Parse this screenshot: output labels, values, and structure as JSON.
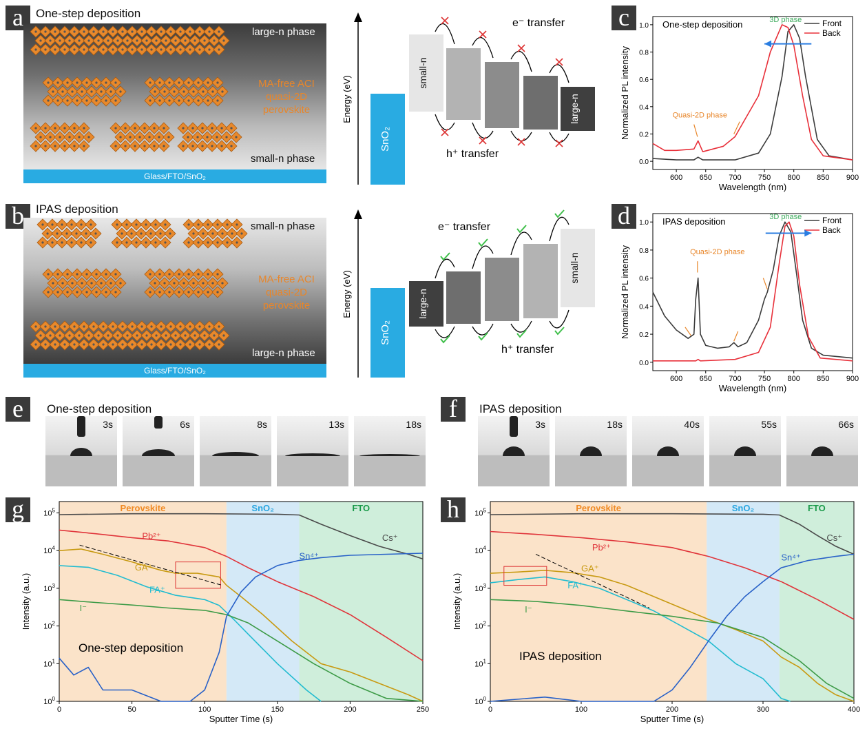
{
  "panels": {
    "a": {
      "letter": "a",
      "title": "One-step deposition",
      "top_label": "large-n phase",
      "bottom_label": "small-n phase",
      "mafree": "MA-free ACI",
      "quasi": "quasi-2D",
      "perov": "perovskite",
      "substrate": "Glass/FTO/SnO₂"
    },
    "b": {
      "letter": "b",
      "title": "IPAS deposition",
      "top_label": "small-n phase",
      "bottom_label": "large-n phase",
      "mafree": "MA-free ACI",
      "quasi": "quasi-2D",
      "perov": "perovskite",
      "substrate": "Glass/FTO/SnO₂"
    },
    "energy_a": {
      "ylabel": "Energy (eV)",
      "sno2": "SnO₂",
      "first": "small-n",
      "last": "large-n",
      "e_transfer": "e⁻ transfer",
      "h_transfer": "h⁺ transfer",
      "transfer_ok": false
    },
    "energy_b": {
      "ylabel": "Energy (eV)",
      "sno2": "SnO₂",
      "first": "large-n",
      "last": "small-n",
      "e_transfer": "e⁻ transfer",
      "h_transfer": "h⁺ transfer",
      "transfer_ok": true
    },
    "e": {
      "letter": "e",
      "title": "One-step deposition",
      "times": [
        "3s",
        "6s",
        "8s",
        "13s",
        "18s"
      ]
    },
    "f": {
      "letter": "f",
      "title": "IPAS deposition",
      "times": [
        "3s",
        "18s",
        "40s",
        "55s",
        "66s"
      ]
    }
  },
  "chart_data": [
    {
      "id": "c",
      "letter": "c",
      "type": "line",
      "annotation": "One-step deposition",
      "xlabel": "Wavelength (nm)",
      "ylabel": "Normalized PL intensity",
      "xlim": [
        560,
        900
      ],
      "ylim": [
        -0.06,
        1.06
      ],
      "xticks": [
        600,
        650,
        700,
        750,
        800,
        850,
        900
      ],
      "yticks": [
        0.0,
        0.2,
        0.4,
        0.6,
        0.8,
        1.0
      ],
      "legend_position": "top-right",
      "label_3d": "3D phase",
      "label_quasi": "Quasi-2D phase",
      "arrow_direction": "left",
      "series": [
        {
          "name": "Front",
          "color": "#3b3b3b",
          "x": [
            560,
            600,
            630,
            637,
            645,
            700,
            740,
            760,
            780,
            790,
            800,
            810,
            820,
            840,
            860,
            900
          ],
          "y": [
            0.02,
            0.01,
            0.01,
            0.03,
            0.01,
            0.01,
            0.06,
            0.2,
            0.62,
            0.95,
            1.0,
            0.9,
            0.62,
            0.16,
            0.04,
            0.01
          ]
        },
        {
          "name": "Back",
          "color": "#e8303a",
          "x": [
            560,
            580,
            600,
            630,
            637,
            645,
            680,
            700,
            740,
            760,
            780,
            790,
            800,
            815,
            830,
            850,
            900
          ],
          "y": [
            0.13,
            0.08,
            0.08,
            0.09,
            0.15,
            0.07,
            0.11,
            0.18,
            0.48,
            0.8,
            1.0,
            0.98,
            0.85,
            0.48,
            0.16,
            0.04,
            0.01
          ]
        }
      ]
    },
    {
      "id": "d",
      "letter": "d",
      "type": "line",
      "annotation": "IPAS deposition",
      "xlabel": "Wavelength (nm)",
      "ylabel": "Normalized PL intensity",
      "xlim": [
        560,
        900
      ],
      "ylim": [
        -0.06,
        1.06
      ],
      "xticks": [
        600,
        650,
        700,
        750,
        800,
        850,
        900
      ],
      "yticks": [
        0.0,
        0.2,
        0.4,
        0.6,
        0.8,
        1.0
      ],
      "legend_position": "top-right",
      "label_3d": "3D phase",
      "label_quasi": "Quasi-2D phase",
      "arrow_direction": "right",
      "series": [
        {
          "name": "Front",
          "color": "#3b3b3b",
          "x": [
            560,
            580,
            600,
            620,
            630,
            633,
            637,
            641,
            650,
            670,
            690,
            698,
            705,
            720,
            740,
            750,
            755,
            765,
            775,
            785,
            795,
            805,
            815,
            830,
            850,
            900
          ],
          "y": [
            0.5,
            0.33,
            0.23,
            0.17,
            0.2,
            0.45,
            0.6,
            0.2,
            0.12,
            0.1,
            0.11,
            0.14,
            0.11,
            0.14,
            0.3,
            0.45,
            0.5,
            0.66,
            0.9,
            1.0,
            0.93,
            0.62,
            0.3,
            0.1,
            0.05,
            0.03
          ]
        },
        {
          "name": "Back",
          "color": "#e8303a",
          "x": [
            560,
            600,
            633,
            637,
            641,
            700,
            740,
            760,
            775,
            785,
            792,
            800,
            810,
            825,
            845,
            900
          ],
          "y": [
            0.01,
            0.01,
            0.01,
            0.02,
            0.01,
            0.02,
            0.07,
            0.25,
            0.7,
            0.97,
            1.0,
            0.9,
            0.55,
            0.18,
            0.03,
            0.01
          ]
        }
      ]
    },
    {
      "id": "g",
      "letter": "g",
      "type": "line",
      "yscale": "log",
      "annotation": "One-step deposition",
      "xlabel": "Sputter Time (s)",
      "ylabel": "Intensity (a.u.)",
      "xlim": [
        0,
        250
      ],
      "ylim": [
        1,
        200000
      ],
      "xticks": [
        0,
        50,
        100,
        150,
        200,
        250
      ],
      "yticks": [
        1,
        10,
        100,
        1000,
        10000,
        100000
      ],
      "regions": [
        {
          "name": "Perovskite",
          "from": 0,
          "to": 115,
          "color": "#fbe3c9",
          "text": "#f08a24"
        },
        {
          "name": "SnO₂",
          "from": 115,
          "to": 165,
          "color": "#d4e9f7",
          "text": "#2aa6e0"
        },
        {
          "name": "FTO",
          "from": 165,
          "to": 250,
          "color": "#cfeedb",
          "text": "#1a9a4a"
        }
      ],
      "series": [
        {
          "name": "Cs⁺",
          "color": "#4a4a4a",
          "x": [
            0,
            50,
            100,
            150,
            165,
            180,
            200,
            220,
            240,
            250
          ],
          "y": [
            90000,
            95000,
            95000,
            92000,
            88000,
            50000,
            25000,
            13000,
            8000,
            6000
          ],
          "label_x": 222,
          "label_y": 18000
        },
        {
          "name": "Pb²⁺",
          "color": "#e0343a",
          "x": [
            0,
            25,
            50,
            75,
            100,
            115,
            130,
            150,
            175,
            200,
            225,
            250
          ],
          "y": [
            35000,
            28000,
            22000,
            18000,
            12000,
            7000,
            3500,
            1500,
            600,
            200,
            50,
            12
          ],
          "label_x": 57,
          "label_y": 20000
        },
        {
          "name": "GA⁺",
          "color": "#c89a12",
          "x": [
            0,
            15,
            30,
            50,
            70,
            80,
            95,
            110,
            115,
            125,
            140,
            160,
            180,
            200,
            220,
            240,
            250
          ],
          "y": [
            10000,
            11000,
            8000,
            5000,
            3000,
            2500,
            2500,
            2000,
            1200,
            600,
            200,
            40,
            10,
            6,
            3,
            1.5,
            1
          ],
          "label_x": 52,
          "label_y": 3000
        },
        {
          "name": "FA⁺",
          "color": "#22bcd0",
          "x": [
            0,
            20,
            40,
            60,
            80,
            100,
            110,
            120,
            130,
            150,
            170,
            180
          ],
          "y": [
            4000,
            3600,
            2200,
            1100,
            650,
            500,
            350,
            150,
            60,
            10,
            2,
            0.8
          ],
          "label_x": 62,
          "label_y": 750
        },
        {
          "name": "I⁻",
          "color": "#3d9b47",
          "x": [
            0,
            25,
            50,
            75,
            100,
            115,
            130,
            150,
            175,
            200,
            225,
            250
          ],
          "y": [
            500,
            420,
            360,
            300,
            260,
            200,
            120,
            40,
            10,
            3,
            1.2,
            1
          ],
          "label_x": 14,
          "label_y": 250
        },
        {
          "name": "Sn⁴⁺",
          "color": "#2861c8",
          "x": [
            0,
            10,
            20,
            30,
            50,
            70,
            90,
            100,
            110,
            115,
            125,
            135,
            150,
            165,
            180,
            200,
            225,
            250
          ],
          "y": [
            14,
            5,
            8,
            2,
            2,
            1,
            1,
            2,
            20,
            180,
            800,
            2000,
            4000,
            5500,
            6500,
            7500,
            8000,
            8500
          ],
          "label_x": 165,
          "label_y": 6000
        }
      ]
    },
    {
      "id": "h",
      "letter": "h",
      "type": "line",
      "yscale": "log",
      "annotation": "IPAS deposition",
      "xlabel": "Sputter Time (s)",
      "ylabel": "Intensity (a.u.)",
      "xlim": [
        0,
        400
      ],
      "ylim": [
        1,
        200000
      ],
      "xticks": [
        0,
        100,
        200,
        300,
        400
      ],
      "yticks": [
        1,
        10,
        100,
        1000,
        10000,
        100000
      ],
      "regions": [
        {
          "name": "Perovskite",
          "from": 0,
          "to": 238,
          "color": "#fbe3c9",
          "text": "#f08a24"
        },
        {
          "name": "SnO₂",
          "from": 238,
          "to": 318,
          "color": "#d4e9f7",
          "text": "#2aa6e0"
        },
        {
          "name": "FTO",
          "from": 318,
          "to": 400,
          "color": "#cfeedb",
          "text": "#1a9a4a"
        }
      ],
      "series": [
        {
          "name": "Cs⁺",
          "color": "#4a4a4a",
          "x": [
            0,
            100,
            200,
            300,
            318,
            340,
            360,
            380,
            400
          ],
          "y": [
            90000,
            95000,
            95000,
            92000,
            88000,
            50000,
            25000,
            13000,
            8000
          ],
          "label_x": 370,
          "label_y": 18000
        },
        {
          "name": "Pb²⁺",
          "color": "#e0343a",
          "x": [
            0,
            50,
            100,
            150,
            200,
            240,
            280,
            320,
            360,
            400
          ],
          "y": [
            32000,
            27000,
            22000,
            17000,
            12000,
            7000,
            3500,
            1500,
            500,
            150
          ],
          "label_x": 112,
          "label_y": 10000
        },
        {
          "name": "GA⁺",
          "color": "#c89a12",
          "x": [
            0,
            30,
            60,
            90,
            120,
            150,
            180,
            210,
            240,
            270,
            300,
            320,
            340,
            360,
            380,
            400
          ],
          "y": [
            2500,
            2700,
            3000,
            2600,
            2000,
            1200,
            600,
            300,
            150,
            80,
            40,
            15,
            8,
            3,
            1.5,
            1
          ],
          "label_x": 100,
          "label_y": 2800
        },
        {
          "name": "FA⁺",
          "color": "#22bcd0",
          "x": [
            0,
            30,
            60,
            90,
            120,
            150,
            180,
            210,
            240,
            270,
            300,
            320,
            330
          ],
          "y": [
            1400,
            1700,
            2000,
            1500,
            1000,
            500,
            250,
            100,
            40,
            10,
            4,
            1.2,
            0.8
          ],
          "label_x": 85,
          "label_y": 1000
        },
        {
          "name": "I⁻",
          "color": "#3d9b47",
          "x": [
            0,
            50,
            100,
            150,
            200,
            250,
            300,
            340,
            370,
            400
          ],
          "y": [
            500,
            450,
            350,
            250,
            180,
            120,
            50,
            12,
            3,
            1.2
          ],
          "label_x": 38,
          "label_y": 230
        },
        {
          "name": "Sn⁴⁺",
          "color": "#2861c8",
          "x": [
            0,
            60,
            100,
            140,
            160,
            180,
            200,
            220,
            240,
            260,
            280,
            300,
            320,
            350,
            380,
            400
          ],
          "y": [
            0.8,
            1.3,
            0.8,
            1,
            0.8,
            1,
            2,
            8,
            40,
            180,
            600,
            1500,
            3500,
            5500,
            7000,
            8000
          ],
          "label_x": 320,
          "label_y": 5500
        }
      ]
    }
  ]
}
